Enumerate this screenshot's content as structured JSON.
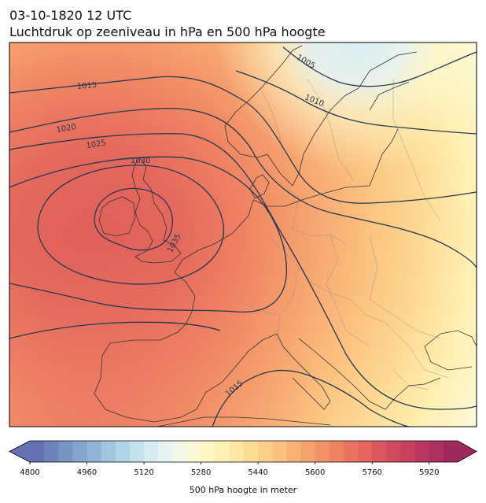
{
  "header": {
    "datetime": "03-10-1820 12 UTC",
    "title": "Luchtdruk op zeeniveau in hPa en 500 hPa hoogte"
  },
  "map": {
    "region": "Europe",
    "fill_field": "500 hPa geopotential height (m)",
    "contour_field": "mean sea level pressure (hPa)",
    "isobar_labels": [
      "1005",
      "1010",
      "1015",
      "1020",
      "1025",
      "1030",
      "1035",
      "1015"
    ],
    "colors": {
      "contour_line": "#24384f",
      "coastline": "#333333",
      "border": "#777777"
    }
  },
  "colorbar": {
    "label": "500 hPa hoogte in meter",
    "tick_labels": [
      "4800",
      "4960",
      "5120",
      "5280",
      "5440",
      "5600",
      "5760",
      "5920"
    ],
    "range": [
      4800,
      6000
    ],
    "step": 40,
    "colors": [
      "#6670b3",
      "#6e83bb",
      "#7794c2",
      "#83a5cb",
      "#90b5d4",
      "#9fc6dd",
      "#b1d5e6",
      "#c4e2ee",
      "#d6edf4",
      "#e6f3f2",
      "#f2f7e6",
      "#fbf9d5",
      "#fff6c4",
      "#fff0b3",
      "#fee7a3",
      "#fddb95",
      "#fccf89",
      "#fbc17f",
      "#f9b176",
      "#f6a26e",
      "#f39268",
      "#ef8263",
      "#ea7260",
      "#e4645e",
      "#dc575d",
      "#d24a5d",
      "#c7405d",
      "#bb375e",
      "#ad305e",
      "#9e295d"
    ]
  }
}
